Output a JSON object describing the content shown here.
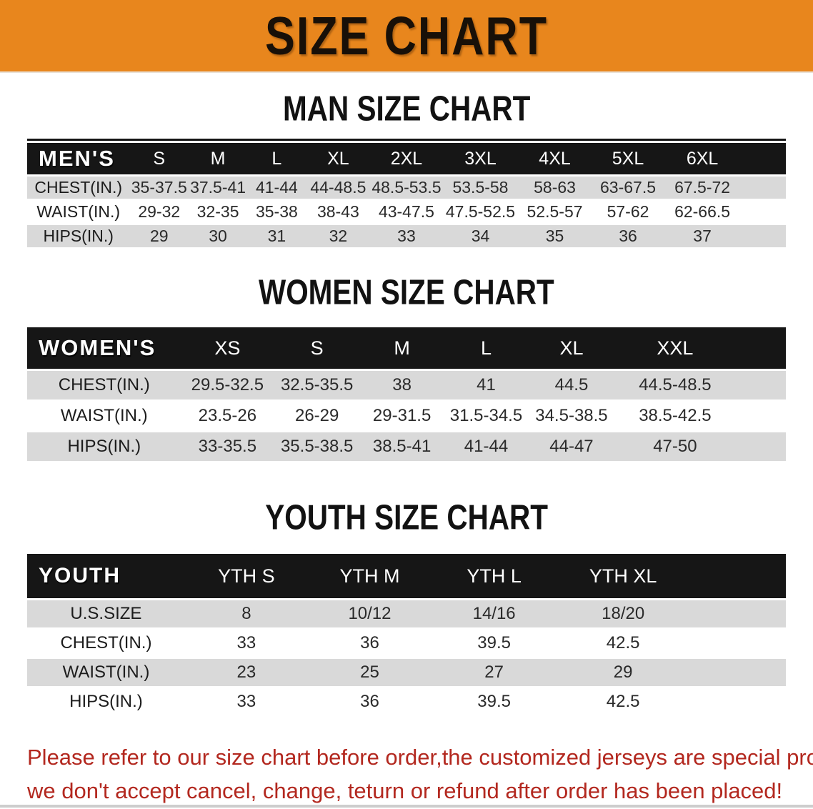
{
  "banner": {
    "title": "SIZE CHART"
  },
  "sections": [
    {
      "heading": "MAN SIZE CHART",
      "table": {
        "corner": "MEN'S",
        "sizes": [
          "S",
          "M",
          "L",
          "XL",
          "2XL",
          "3XL",
          "4XL",
          "5XL",
          "6XL"
        ],
        "rows": [
          {
            "label": "CHEST(IN.)",
            "values": [
              "35-37.5",
              "37.5-41",
              "41-44",
              "44-48.5",
              "48.5-53.5",
              "53.5-58",
              "58-63",
              "63-67.5",
              "67.5-72"
            ]
          },
          {
            "label": "WAIST(IN.)",
            "values": [
              "29-32",
              "32-35",
              "35-38",
              "38-43",
              "43-47.5",
              "47.5-52.5",
              "52.5-57",
              "57-62",
              "62-66.5"
            ]
          },
          {
            "label": "HIPS(IN.)",
            "values": [
              "29",
              "30",
              "31",
              "32",
              "33",
              "34",
              "35",
              "36",
              "37"
            ]
          }
        ]
      }
    },
    {
      "heading": "WOMEN SIZE CHART",
      "table": {
        "corner": "WOMEN'S",
        "sizes": [
          "XS",
          "S",
          "M",
          "L",
          "XL",
          "XXL"
        ],
        "rows": [
          {
            "label": "CHEST(IN.)",
            "values": [
              "29.5-32.5",
              "32.5-35.5",
              "38",
              "41",
              "44.5",
              "44.5-48.5"
            ]
          },
          {
            "label": "WAIST(IN.)",
            "values": [
              "23.5-26",
              "26-29",
              "29-31.5",
              "31.5-34.5",
              "34.5-38.5",
              "38.5-42.5"
            ]
          },
          {
            "label": "HIPS(IN.)",
            "values": [
              "33-35.5",
              "35.5-38.5",
              "38.5-41",
              "41-44",
              "44-47",
              "47-50"
            ]
          }
        ]
      }
    },
    {
      "heading": "YOUTH SIZE CHART",
      "table": {
        "corner": "YOUTH",
        "sizes": [
          "YTH S",
          "YTH M",
          "YTH L",
          "YTH XL"
        ],
        "rows": [
          {
            "label": "U.S.SIZE",
            "values": [
              "8",
              "10/12",
              "14/16",
              "18/20"
            ]
          },
          {
            "label": "CHEST(IN.)",
            "values": [
              "33",
              "36",
              "39.5",
              "42.5"
            ]
          },
          {
            "label": "WAIST(IN.)",
            "values": [
              "23",
              "25",
              "27",
              "29"
            ]
          },
          {
            "label": "HIPS(IN.)",
            "values": [
              "33",
              "36",
              "39.5",
              "42.5"
            ]
          }
        ]
      }
    }
  ],
  "footer": {
    "line1": "Please refer to our size chart before order,the customized jerseys are special products,",
    "line2": "we don't accept cancel, change, teturn or refund after order has been placed!"
  },
  "colors": {
    "banner_bg": "#E8861D",
    "table_header_bg": "#161616",
    "row_alt_bg": "#D9D9D9",
    "disclaimer_red": "#B3281F"
  }
}
